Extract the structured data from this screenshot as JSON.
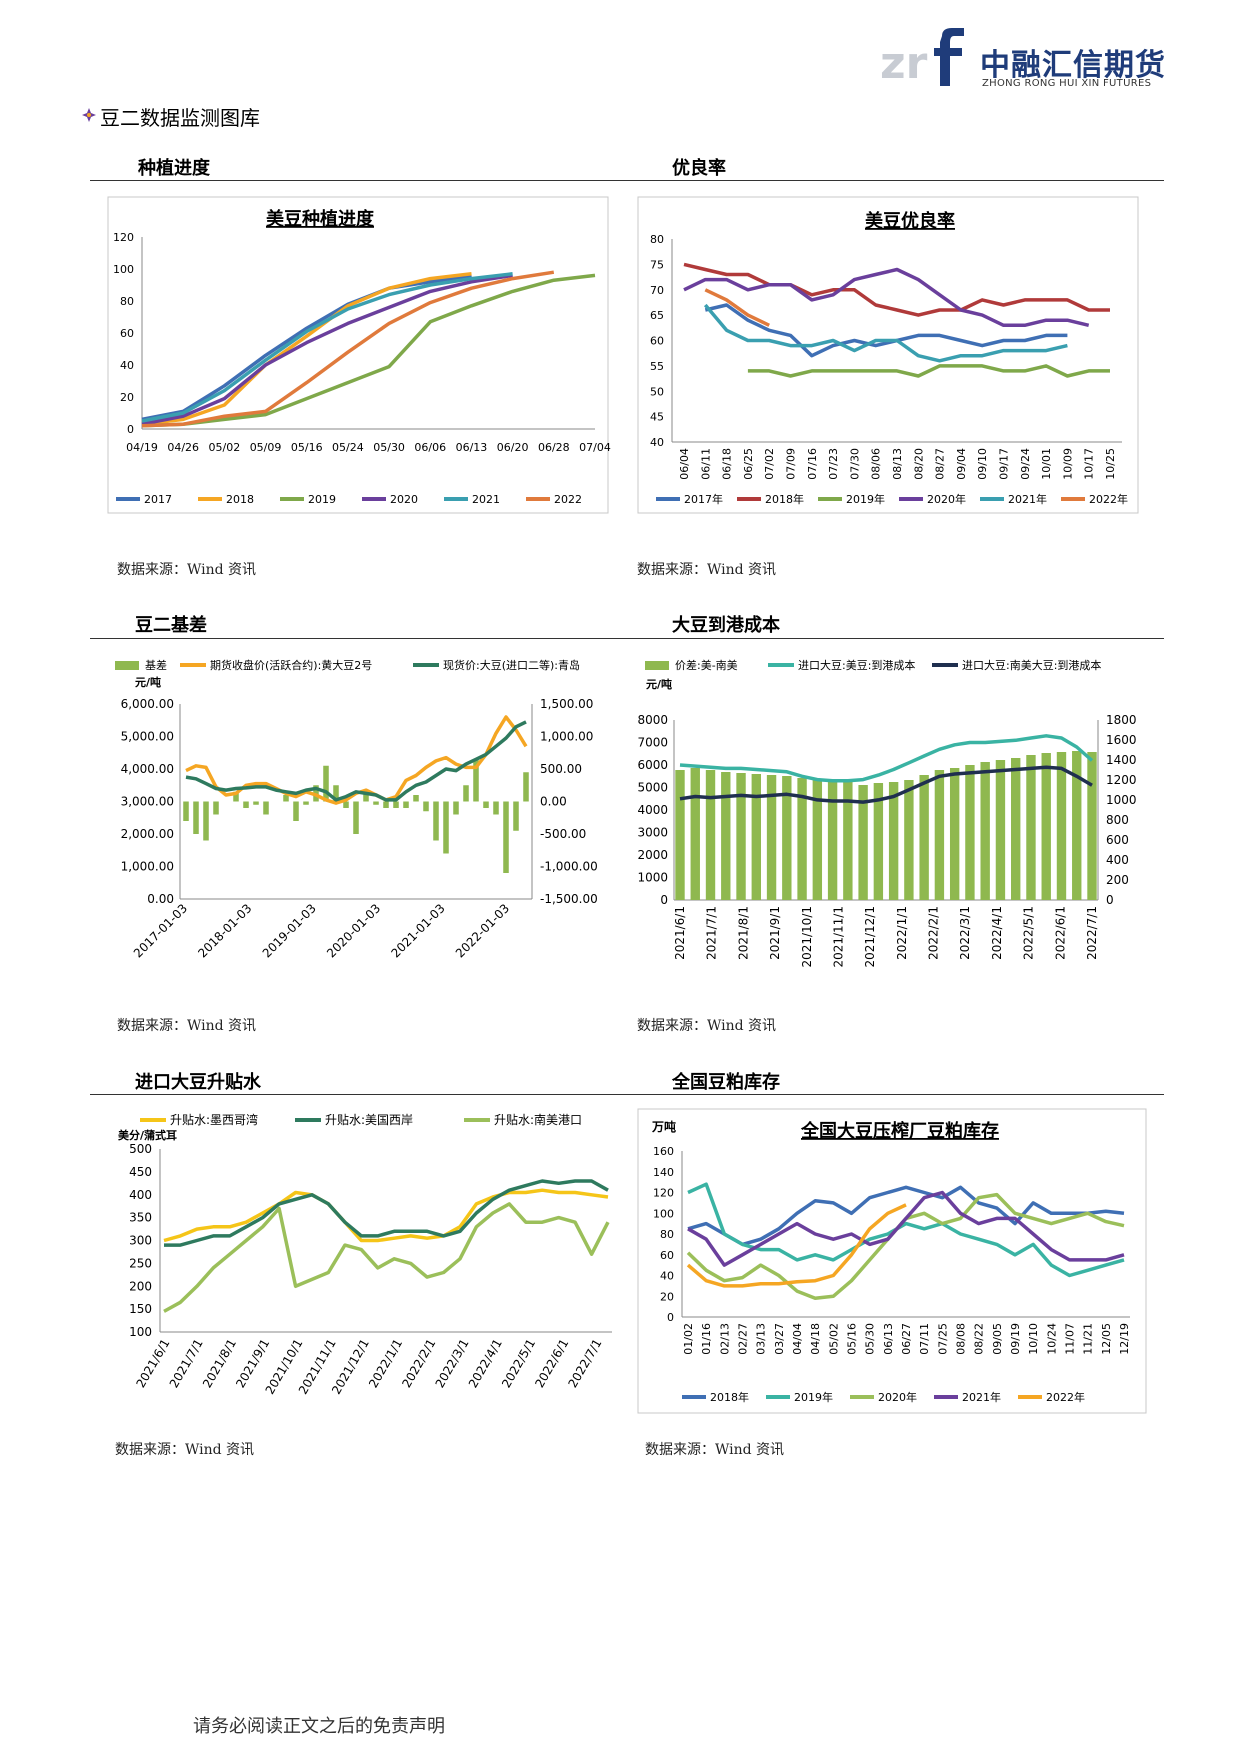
{
  "brand": {
    "name_cn": "中融汇信期货",
    "name_en": "ZHONG RONG HUI XIN FUTURES"
  },
  "page": {
    "heading": "豆二数据监测图库",
    "footer": "请务必阅读正文之后的免责声明"
  },
  "sections": {
    "s1": {
      "title": "种植进度",
      "source": "数据来源：Wind 资讯"
    },
    "s2": {
      "title": "优良率",
      "source": "数据来源：Wind 资讯"
    },
    "s3": {
      "title": "豆二基差",
      "source": "数据来源：Wind 资讯"
    },
    "s4": {
      "title": "大豆到港成本",
      "source": "数据来源：Wind 资讯"
    },
    "s5": {
      "title": "进口大豆升贴水",
      "source": "数据来源：Wind 资讯"
    },
    "s6": {
      "title": "全国豆粕库存",
      "source": "数据来源：Wind 资讯"
    }
  },
  "chart_data": [
    {
      "id": "planting",
      "type": "line",
      "title": "美豆种植进度",
      "categories": [
        "04/19",
        "04/26",
        "05/02",
        "05/09",
        "05/16",
        "05/24",
        "05/30",
        "06/06",
        "06/13",
        "06/20",
        "06/28",
        "07/04"
      ],
      "ylim": [
        0,
        120
      ],
      "yticks": [
        0,
        20,
        40,
        60,
        80,
        100,
        120
      ],
      "grid": false,
      "legend": "bottom",
      "series": [
        {
          "name": "2017",
          "color": "#3f6fb4",
          "values": [
            6,
            11,
            27,
            46,
            63,
            78,
            88,
            92,
            96,
            null,
            null,
            null
          ]
        },
        {
          "name": "2018",
          "color": "#f5a623",
          "values": [
            3,
            6,
            15,
            40,
            58,
            77,
            88,
            94,
            97,
            null,
            null,
            null
          ]
        },
        {
          "name": "2019",
          "color": "#7fa84a",
          "values": [
            2,
            3,
            6,
            9,
            19,
            29,
            39,
            67,
            77,
            86,
            93,
            96
          ]
        },
        {
          "name": "2020",
          "color": "#6a3f9c",
          "values": [
            3,
            8,
            19,
            40,
            54,
            66,
            76,
            86,
            92,
            96,
            null,
            null
          ]
        },
        {
          "name": "2021",
          "color": "#3a9fb0",
          "values": [
            5,
            10,
            24,
            43,
            61,
            75,
            84,
            90,
            94,
            97,
            null,
            null
          ]
        },
        {
          "name": "2022",
          "color": "#e07a3c",
          "values": [
            2,
            3,
            8,
            11,
            29,
            48,
            66,
            79,
            88,
            94,
            98,
            null
          ]
        }
      ]
    },
    {
      "id": "good_rate",
      "type": "line",
      "title": "美豆优良率",
      "categories": [
        "06/04",
        "06/11",
        "06/18",
        "06/25",
        "07/02",
        "07/09",
        "07/16",
        "07/23",
        "07/30",
        "08/06",
        "08/13",
        "08/20",
        "08/27",
        "09/04",
        "09/10",
        "09/17",
        "09/24",
        "10/01",
        "10/09",
        "10/17",
        "10/25"
      ],
      "ylim": [
        40,
        80
      ],
      "yticks": [
        40,
        45,
        50,
        55,
        60,
        65,
        70,
        75,
        80
      ],
      "grid": false,
      "legend": "bottom",
      "series": [
        {
          "name": "2017年",
          "color": "#3f6fb4",
          "values": [
            null,
            66,
            67,
            64,
            62,
            61,
            57,
            59,
            60,
            59,
            60,
            61,
            61,
            60,
            59,
            60,
            60,
            61,
            61,
            null,
            null
          ]
        },
        {
          "name": "2018年",
          "color": "#b03a3a",
          "values": [
            75,
            74,
            73,
            73,
            71,
            71,
            69,
            70,
            70,
            67,
            66,
            65,
            66,
            66,
            68,
            67,
            68,
            68,
            68,
            66,
            66
          ]
        },
        {
          "name": "2019年",
          "color": "#7fa84a",
          "values": [
            null,
            null,
            null,
            54,
            54,
            53,
            54,
            54,
            54,
            54,
            54,
            53,
            55,
            55,
            55,
            54,
            54,
            55,
            53,
            54,
            54
          ]
        },
        {
          "name": "2020年",
          "color": "#6a3f9c",
          "values": [
            70,
            72,
            72,
            70,
            71,
            71,
            68,
            69,
            72,
            73,
            74,
            72,
            69,
            66,
            65,
            63,
            63,
            64,
            64,
            63,
            null
          ]
        },
        {
          "name": "2021年",
          "color": "#3a9fb0",
          "values": [
            null,
            67,
            62,
            60,
            60,
            59,
            59,
            60,
            58,
            60,
            60,
            57,
            56,
            57,
            57,
            58,
            58,
            58,
            59,
            null,
            null
          ]
        },
        {
          "name": "2022年",
          "color": "#e07a3c",
          "values": [
            null,
            70,
            68,
            65,
            63,
            null,
            null,
            null,
            null,
            null,
            null,
            null,
            null,
            null,
            null,
            null,
            null,
            null,
            null,
            null,
            null
          ]
        }
      ]
    },
    {
      "id": "basis",
      "type": "line",
      "unit": "元/吨",
      "x_ticks": [
        "2017-01-03",
        "2018-01-03",
        "2019-01-03",
        "2020-01-03",
        "2021-01-03",
        "2022-01-03"
      ],
      "ylim_left": [
        0,
        6000
      ],
      "yticks_left": [
        "0.00",
        "1,000.00",
        "2,000.00",
        "3,000.00",
        "4,000.00",
        "5,000.00",
        "6,000.00"
      ],
      "ylim_right": [
        -1500,
        1500
      ],
      "yticks_right": [
        "-1,500.00",
        "-1,000.00",
        "-500.00",
        "0.00",
        "500.00",
        "1,000.00",
        "1,500.00"
      ],
      "legend": "top",
      "series": [
        {
          "name": "基差",
          "color": "#8fb84f",
          "kind": "bar",
          "axis": "right",
          "values": [
            -300,
            -500,
            -600,
            -200,
            0,
            150,
            -100,
            -50,
            -200,
            0,
            100,
            -300,
            -50,
            250,
            550,
            250,
            -100,
            -500,
            150,
            -50,
            -100,
            -100,
            -100,
            100,
            -150,
            -600,
            -800,
            -200,
            250,
            650,
            -100,
            -200,
            -1100,
            -450,
            450
          ]
        },
        {
          "name": "期货收盘价(活跃合约):黄大豆2号",
          "color": "#f5a623",
          "kind": "line",
          "axis": "left",
          "values": [
            3950,
            4100,
            4050,
            3450,
            3200,
            3250,
            3500,
            3550,
            3550,
            3400,
            3250,
            3150,
            3300,
            3200,
            3050,
            2950,
            3050,
            3250,
            3350,
            3200,
            3050,
            3150,
            3650,
            3800,
            4050,
            4250,
            4350,
            4150,
            4050,
            4050,
            4450,
            5100,
            5600,
            5200,
            4700
          ]
        },
        {
          "name": "现货价:大豆(进口二等):青岛",
          "color": "#2e7a5e",
          "kind": "line",
          "axis": "left",
          "values": [
            3750,
            3700,
            3550,
            3400,
            3350,
            3400,
            3420,
            3450,
            3450,
            3350,
            3300,
            3250,
            3350,
            3400,
            3300,
            3050,
            3150,
            3300,
            3250,
            3200,
            3050,
            3050,
            3300,
            3500,
            3600,
            3800,
            4000,
            3950,
            4150,
            4300,
            4450,
            4700,
            4950,
            5300,
            5450
          ]
        }
      ]
    },
    {
      "id": "arrival_cost",
      "type": "line",
      "x_ticks": [
        "2021/6/1",
        "2021/7/1",
        "2021/8/1",
        "2021/9/1",
        "2021/10/1",
        "2021/11/1",
        "2021/12/1",
        "2022/1/1",
        "2022/2/1",
        "2022/3/1",
        "2022/4/1",
        "2022/5/1",
        "2022/6/1",
        "2022/7/1"
      ],
      "unit": "元/吨",
      "ylim_left": [
        0,
        8000
      ],
      "yticks_left": [
        "0",
        "1000",
        "2000",
        "3000",
        "4000",
        "5000",
        "6000",
        "7000",
        "8000"
      ],
      "ylim_right": [
        0,
        1800
      ],
      "yticks_right": [
        "0",
        "200",
        "400",
        "600",
        "800",
        "1000",
        "1200",
        "1400",
        "1600",
        "1800"
      ],
      "legend": "top",
      "series": [
        {
          "name": "价差:美-南美",
          "color": "#8fb84f",
          "kind": "bar",
          "axis": "right",
          "values": [
            1300,
            1320,
            1300,
            1280,
            1270,
            1260,
            1250,
            1240,
            1220,
            1200,
            1190,
            1180,
            1150,
            1170,
            1180,
            1200,
            1250,
            1300,
            1320,
            1350,
            1380,
            1400,
            1420,
            1450,
            1470,
            1480,
            1490,
            1480
          ]
        },
        {
          "name": "进口大豆:美豆:到港成本",
          "color": "#3ab3a3",
          "kind": "line",
          "axis": "left",
          "values": [
            6000,
            5950,
            5900,
            5850,
            5850,
            5800,
            5750,
            5700,
            5500,
            5350,
            5300,
            5300,
            5350,
            5550,
            5800,
            6100,
            6400,
            6700,
            6900,
            7000,
            7000,
            7050,
            7100,
            7200,
            7300,
            7200,
            6800,
            6200
          ]
        },
        {
          "name": "进口大豆:南美大豆:到港成本",
          "color": "#1f2f4f",
          "kind": "line",
          "axis": "left",
          "values": [
            4500,
            4600,
            4550,
            4600,
            4650,
            4600,
            4650,
            4700,
            4600,
            4450,
            4400,
            4400,
            4350,
            4450,
            4600,
            4900,
            5200,
            5500,
            5600,
            5650,
            5700,
            5750,
            5800,
            5850,
            5900,
            5850,
            5500,
            5100
          ]
        }
      ]
    },
    {
      "id": "premium",
      "type": "line",
      "unit": "美分/蒲式耳",
      "x_ticks": [
        "2021/6/1",
        "2021/7/1",
        "2021/8/1",
        "2021/9/1",
        "2021/10/1",
        "2021/11/1",
        "2021/12/1",
        "2022/1/1",
        "2022/2/1",
        "2022/3/1",
        "2022/4/1",
        "2022/5/1",
        "2022/6/1",
        "2022/7/1"
      ],
      "ylim": [
        100,
        500
      ],
      "yticks": [
        100,
        150,
        200,
        250,
        300,
        350,
        400,
        450,
        500
      ],
      "legend": "top",
      "series": [
        {
          "name": "升贴水:墨西哥湾",
          "color": "#f5c518",
          "values": [
            300,
            310,
            325,
            330,
            330,
            340,
            360,
            380,
            405,
            400,
            380,
            340,
            300,
            300,
            305,
            310,
            305,
            310,
            330,
            380,
            395,
            405,
            405,
            410,
            405,
            405,
            400,
            395
          ]
        },
        {
          "name": "升贴水:美国西岸",
          "color": "#2e7a5e",
          "values": [
            290,
            290,
            300,
            310,
            310,
            330,
            350,
            380,
            390,
            400,
            380,
            340,
            310,
            310,
            320,
            320,
            320,
            310,
            320,
            360,
            390,
            410,
            420,
            430,
            425,
            430,
            430,
            410
          ]
        },
        {
          "name": "升贴水:南美港口",
          "color": "#9bbf5a",
          "values": [
            145,
            165,
            200,
            240,
            270,
            300,
            330,
            370,
            200,
            215,
            230,
            290,
            280,
            240,
            260,
            250,
            220,
            230,
            260,
            330,
            360,
            380,
            340,
            340,
            350,
            340,
            270,
            340
          ]
        }
      ]
    },
    {
      "id": "meal_inventory",
      "type": "line",
      "title": "全国大豆压榨厂豆粕库存",
      "unit": "万吨",
      "categories": [
        "01/02",
        "01/16",
        "02/13",
        "02/27",
        "03/13",
        "03/27",
        "04/04",
        "04/18",
        "05/02",
        "05/16",
        "05/30",
        "06/13",
        "06/27",
        "07/11",
        "07/25",
        "08/08",
        "08/22",
        "09/05",
        "09/19",
        "10/10",
        "10/24",
        "11/07",
        "11/21",
        "12/05",
        "12/19"
      ],
      "ylim": [
        0,
        160
      ],
      "yticks": [
        0,
        20,
        40,
        60,
        80,
        100,
        120,
        140,
        160
      ],
      "legend": "bottom",
      "series": [
        {
          "name": "2018年",
          "color": "#3f6fb4",
          "values": [
            85,
            90,
            80,
            70,
            75,
            85,
            100,
            112,
            110,
            100,
            115,
            120,
            125,
            120,
            115,
            125,
            110,
            105,
            90,
            110,
            100,
            100,
            100,
            102,
            100
          ]
        },
        {
          "name": "2019年",
          "color": "#3ab3a3",
          "values": [
            120,
            128,
            80,
            70,
            65,
            65,
            55,
            60,
            55,
            65,
            75,
            80,
            90,
            85,
            90,
            80,
            75,
            70,
            60,
            70,
            50,
            40,
            45,
            50,
            55
          ]
        },
        {
          "name": "2020年",
          "color": "#9bbf5a",
          "values": [
            62,
            45,
            35,
            38,
            50,
            40,
            25,
            18,
            20,
            35,
            55,
            75,
            95,
            100,
            90,
            95,
            115,
            118,
            100,
            95,
            90,
            95,
            100,
            92,
            88
          ]
        },
        {
          "name": "2021年",
          "color": "#6a3f9c",
          "values": [
            85,
            75,
            50,
            60,
            70,
            80,
            90,
            80,
            75,
            80,
            70,
            75,
            95,
            115,
            120,
            100,
            90,
            95,
            95,
            80,
            65,
            55,
            55,
            55,
            60
          ]
        },
        {
          "name": "2022年",
          "color": "#f5a623",
          "values": [
            50,
            35,
            30,
            30,
            32,
            32,
            34,
            35,
            40,
            60,
            85,
            100,
            108,
            null,
            null,
            null,
            null,
            null,
            null,
            null,
            null,
            null,
            null,
            null,
            null
          ]
        }
      ]
    }
  ]
}
